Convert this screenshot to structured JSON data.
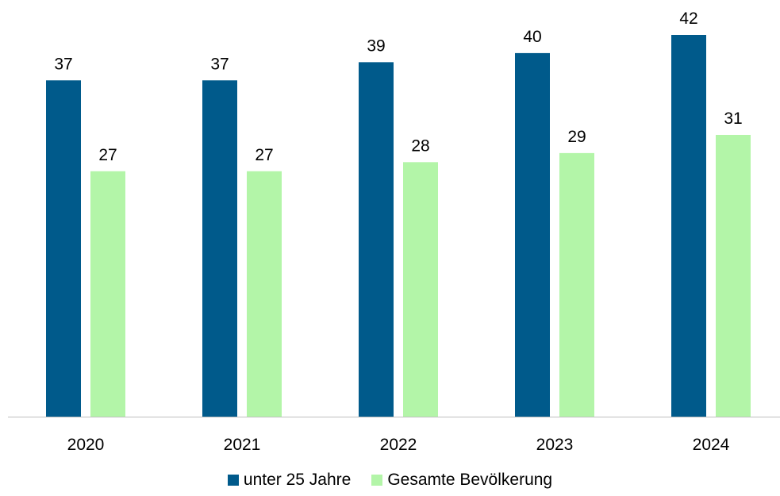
{
  "chart_data": {
    "type": "bar",
    "categories": [
      "2020",
      "2021",
      "2022",
      "2023",
      "2024"
    ],
    "series": [
      {
        "name": "unter 25 Jahre",
        "values": [
          37,
          37,
          39,
          40,
          42
        ],
        "color": "#005A8B"
      },
      {
        "name": "Gesamte Bevölkerung",
        "values": [
          27,
          27,
          28,
          29,
          31
        ],
        "color": "#B3F5A8"
      }
    ],
    "data_labels": {
      "unter 25 Jahre": [
        "37",
        "37",
        "39",
        "40",
        "42"
      ],
      "Gesamte Bevölkerung": [
        "27",
        "27",
        "28",
        "29",
        "31"
      ]
    },
    "ylim": [
      0,
      45
    ],
    "grid": false,
    "legend_position": "bottom",
    "axis_color": "#BFBFBF"
  }
}
